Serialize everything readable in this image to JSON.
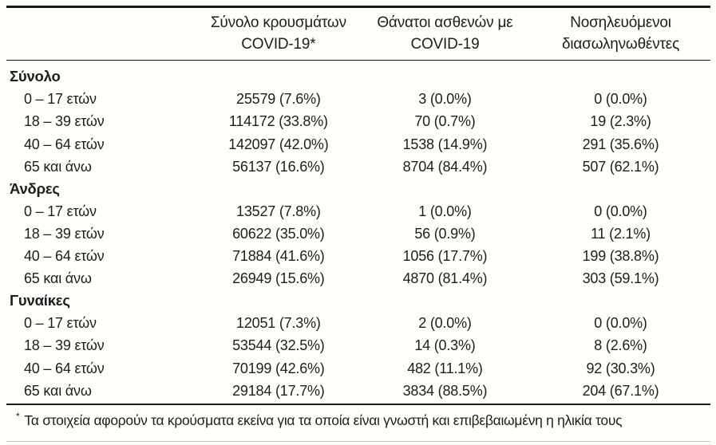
{
  "colors": {
    "text": "#1e1e1e",
    "rule": "#191919",
    "bottom_rule": "#c9c7c3"
  },
  "table": {
    "columns": [
      {
        "line1": "Σύνολο κρουσμάτων",
        "line2": "COVID-19*"
      },
      {
        "line1": "Θάνατοι ασθενών με",
        "line2": "COVID-19"
      },
      {
        "line1": "Νοσηλευόμενοι",
        "line2": "διασωληνωθέντες"
      }
    ],
    "sections": [
      {
        "label": "Σύνολο",
        "rows": [
          {
            "label": "0 – 17 ετών",
            "cases": "25579 (7.6%)",
            "deaths": "3 (0.0%)",
            "intubated": "0 (0.0%)"
          },
          {
            "label": "18 – 39 ετών",
            "cases": "114172 (33.8%)",
            "deaths": "70 (0.7%)",
            "intubated": "19 (2.3%)"
          },
          {
            "label": "40 – 64 ετών",
            "cases": "142097 (42.0%)",
            "deaths": "1538 (14.9%)",
            "intubated": "291 (35.6%)"
          },
          {
            "label": "65 και άνω",
            "cases": "56137 (16.6%)",
            "deaths": "8704 (84.4%)",
            "intubated": "507 (62.1%)"
          }
        ]
      },
      {
        "label": "Άνδρες",
        "rows": [
          {
            "label": "0 – 17 ετών",
            "cases": "13527 (7.8%)",
            "deaths": "1 (0.0%)",
            "intubated": "0 (0.0%)"
          },
          {
            "label": "18 – 39 ετών",
            "cases": "60622 (35.0%)",
            "deaths": "56 (0.9%)",
            "intubated": "11 (2.1%)"
          },
          {
            "label": "40 – 64 ετών",
            "cases": "71884 (41.6%)",
            "deaths": "1056 (17.7%)",
            "intubated": "199 (38.8%)"
          },
          {
            "label": "65 και άνω",
            "cases": "26949 (15.6%)",
            "deaths": "4870 (81.4%)",
            "intubated": "303 (59.1%)"
          }
        ]
      },
      {
        "label": "Γυναίκες",
        "rows": [
          {
            "label": "0 – 17 ετών",
            "cases": "12051 (7.3%)",
            "deaths": "2 (0.0%)",
            "intubated": "0 (0.0%)"
          },
          {
            "label": "18 – 39 ετών",
            "cases": "53544 (32.5%)",
            "deaths": "14 (0.3%)",
            "intubated": "8 (2.6%)"
          },
          {
            "label": "40 – 64 ετών",
            "cases": "70199 (42.6%)",
            "deaths": "482 (11.1%)",
            "intubated": "92 (30.3%)"
          },
          {
            "label": "65 και άνω",
            "cases": "29184 (17.7%)",
            "deaths": "3834 (88.5%)",
            "intubated": "204 (67.1%)"
          }
        ]
      }
    ],
    "footnote": {
      "marker": "*",
      "text": "Τα στοιχεία αφορούν τα κρούσματα εκείνα για τα οποία είναι γνωστή και επιβεβαιωμένη η ηλικία τους"
    }
  }
}
